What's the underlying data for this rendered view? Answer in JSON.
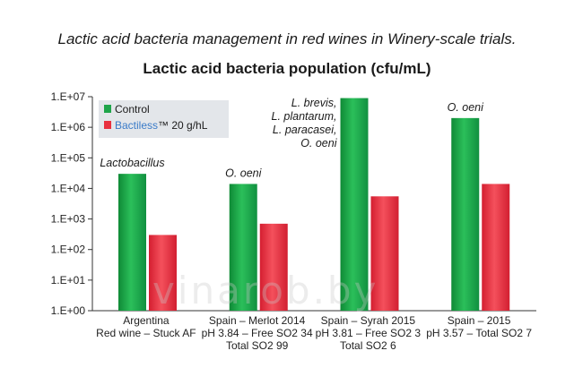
{
  "heading": "Lactic acid bacteria management in red wines in Winery-scale trials.",
  "watermark": "vinarob.by",
  "chart_data": {
    "type": "bar",
    "title": "Lactic acid bacteria population (cfu/mL)",
    "scale": "log10",
    "ylim": [
      1,
      10000000
    ],
    "y_ticks": [
      "1.E+00",
      "1.E+01",
      "1.E+02",
      "1.E+03",
      "1.E+04",
      "1.E+05",
      "1.E+06",
      "1.E+07"
    ],
    "legend_position": "top-left",
    "legend_brand_text": "Bactiless",
    "categories": [
      {
        "lines": [
          "Argentina",
          "Red wine – Stuck AF"
        ],
        "annotation": [
          "Lactobacillus"
        ]
      },
      {
        "lines": [
          "Spain – Merlot 2014",
          "pH 3.84 – Free SO2 34",
          "Total SO2 99"
        ],
        "annotation": [
          "O. oeni"
        ]
      },
      {
        "lines": [
          "Spain – Syrah 2015",
          "pH 3.81 – Free SO2 3",
          "Total SO2 6"
        ],
        "annotation": [
          "L. brevis,",
          "L. plantarum,",
          "L. paracasei,",
          "O. oeni"
        ]
      },
      {
        "lines": [
          "Spain – 2015",
          "pH 3.57 – Total SO2 7"
        ],
        "annotation": [
          "O. oeni"
        ]
      }
    ],
    "series": [
      {
        "name": "Control",
        "color": "#1fa54a",
        "values": [
          30000,
          14000,
          9000000,
          2000000
        ]
      },
      {
        "name": "Bactiless™ 20 g/hL",
        "color": "#e8303f",
        "values": [
          300,
          700,
          5500,
          14000
        ]
      }
    ]
  }
}
